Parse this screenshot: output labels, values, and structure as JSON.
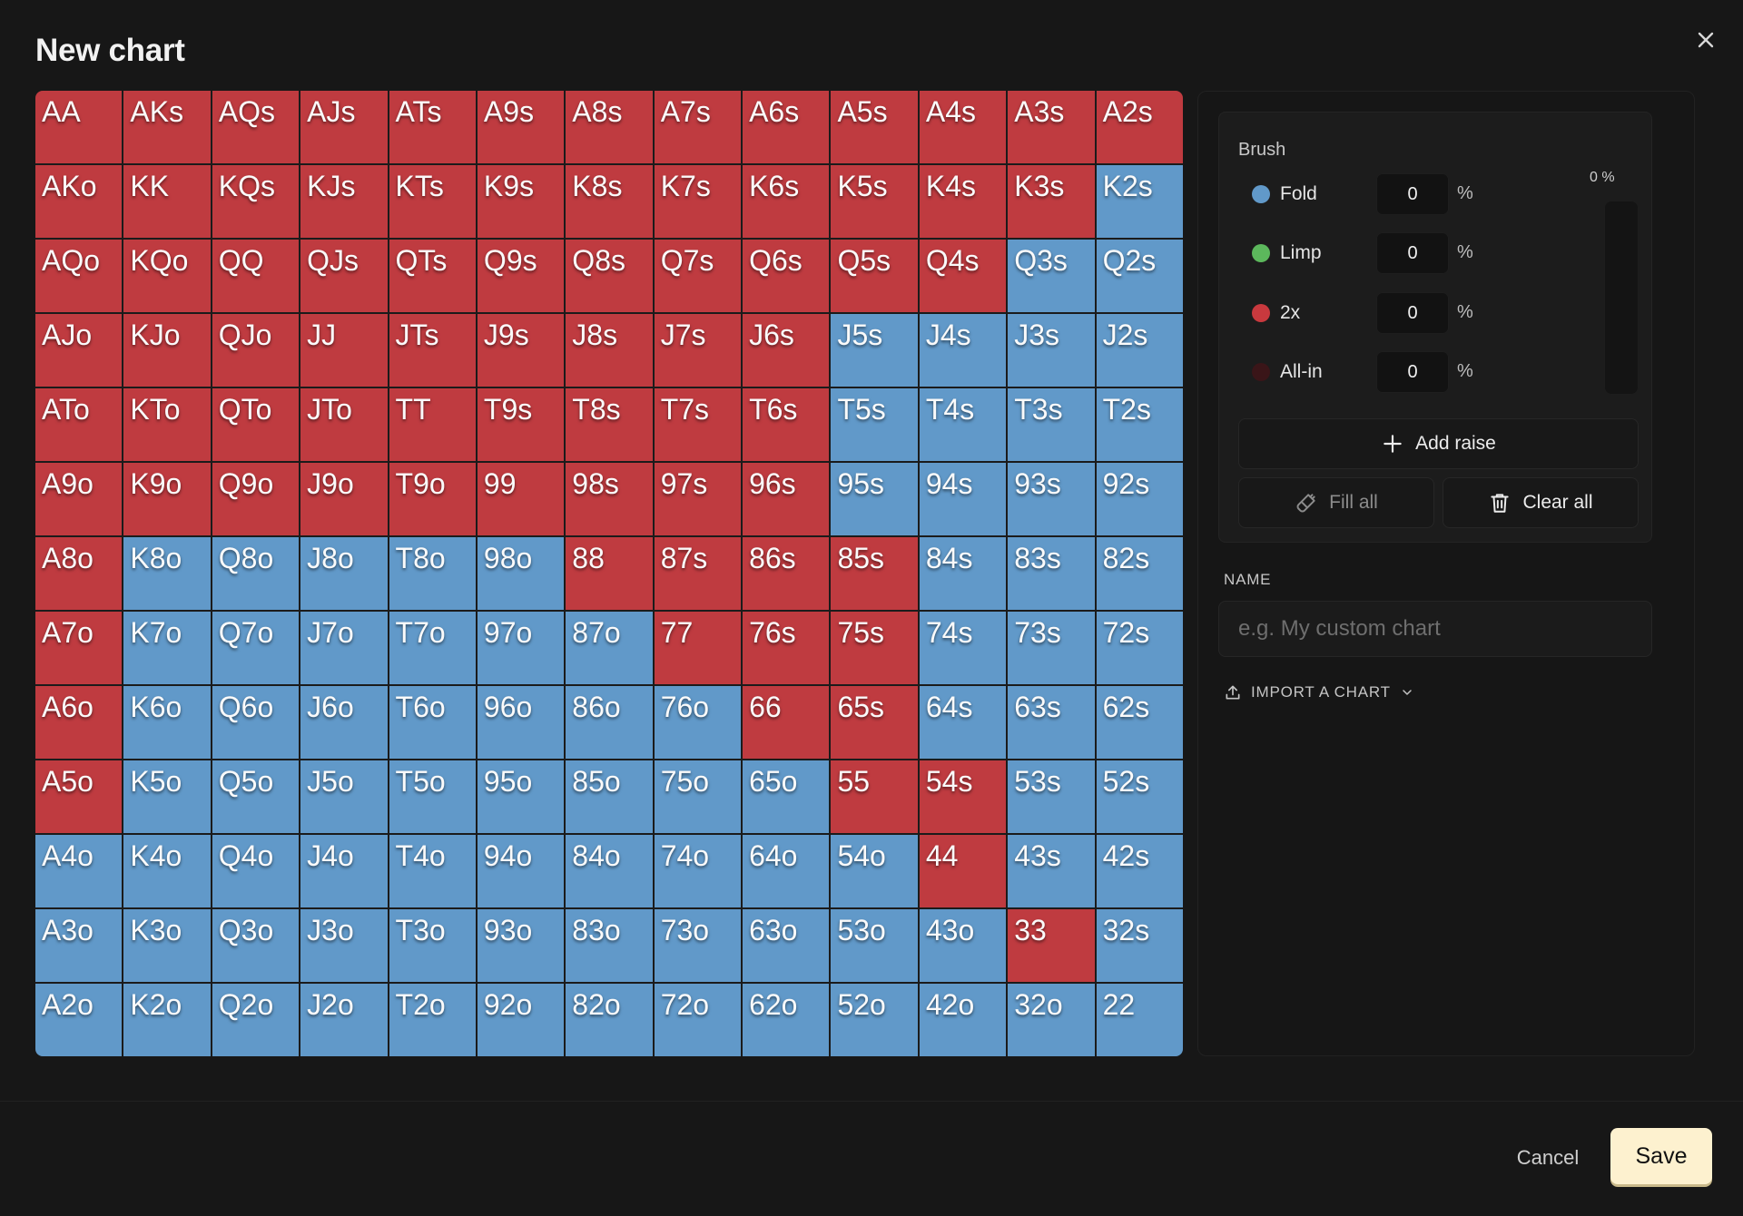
{
  "dialog": {
    "title": "New chart",
    "close_icon": "close-icon"
  },
  "grid": {
    "colors": {
      "2x": "#bf3b40",
      "Fold": "#6199c9"
    },
    "rows": [
      [
        "AA",
        "AKs",
        "AQs",
        "AJs",
        "ATs",
        "A9s",
        "A8s",
        "A7s",
        "A6s",
        "A5s",
        "A4s",
        "A3s",
        "A2s"
      ],
      [
        "AKo",
        "KK",
        "KQs",
        "KJs",
        "KTs",
        "K9s",
        "K8s",
        "K7s",
        "K6s",
        "K5s",
        "K4s",
        "K3s",
        "K2s"
      ],
      [
        "AQo",
        "KQo",
        "QQ",
        "QJs",
        "QTs",
        "Q9s",
        "Q8s",
        "Q7s",
        "Q6s",
        "Q5s",
        "Q4s",
        "Q3s",
        "Q2s"
      ],
      [
        "AJo",
        "KJo",
        "QJo",
        "JJ",
        "JTs",
        "J9s",
        "J8s",
        "J7s",
        "J6s",
        "J5s",
        "J4s",
        "J3s",
        "J2s"
      ],
      [
        "ATo",
        "KTo",
        "QTo",
        "JTo",
        "TT",
        "T9s",
        "T8s",
        "T7s",
        "T6s",
        "T5s",
        "T4s",
        "T3s",
        "T2s"
      ],
      [
        "A9o",
        "K9o",
        "Q9o",
        "J9o",
        "T9o",
        "99",
        "98s",
        "97s",
        "96s",
        "95s",
        "94s",
        "93s",
        "92s"
      ],
      [
        "A8o",
        "K8o",
        "Q8o",
        "J8o",
        "T8o",
        "98o",
        "88",
        "87s",
        "86s",
        "85s",
        "84s",
        "83s",
        "82s"
      ],
      [
        "A7o",
        "K7o",
        "Q7o",
        "J7o",
        "T7o",
        "97o",
        "87o",
        "77",
        "76s",
        "75s",
        "74s",
        "73s",
        "72s"
      ],
      [
        "A6o",
        "K6o",
        "Q6o",
        "J6o",
        "T6o",
        "96o",
        "86o",
        "76o",
        "66",
        "65s",
        "64s",
        "63s",
        "62s"
      ],
      [
        "A5o",
        "K5o",
        "Q5o",
        "J5o",
        "T5o",
        "95o",
        "85o",
        "75o",
        "65o",
        "55",
        "54s",
        "53s",
        "52s"
      ],
      [
        "A4o",
        "K4o",
        "Q4o",
        "J4o",
        "T4o",
        "94o",
        "84o",
        "74o",
        "64o",
        "54o",
        "44",
        "43s",
        "42s"
      ],
      [
        "A3o",
        "K3o",
        "Q3o",
        "J3o",
        "T3o",
        "93o",
        "83o",
        "73o",
        "63o",
        "53o",
        "43o",
        "33",
        "32s"
      ],
      [
        "A2o",
        "K2o",
        "Q2o",
        "J2o",
        "T2o",
        "92o",
        "82o",
        "72o",
        "62o",
        "52o",
        "42o",
        "32o",
        "22"
      ]
    ],
    "actions": [
      [
        "2x",
        "2x",
        "2x",
        "2x",
        "2x",
        "2x",
        "2x",
        "2x",
        "2x",
        "2x",
        "2x",
        "2x",
        "2x"
      ],
      [
        "2x",
        "2x",
        "2x",
        "2x",
        "2x",
        "2x",
        "2x",
        "2x",
        "2x",
        "2x",
        "2x",
        "2x",
        "Fold"
      ],
      [
        "2x",
        "2x",
        "2x",
        "2x",
        "2x",
        "2x",
        "2x",
        "2x",
        "2x",
        "2x",
        "2x",
        "Fold",
        "Fold"
      ],
      [
        "2x",
        "2x",
        "2x",
        "2x",
        "2x",
        "2x",
        "2x",
        "2x",
        "2x",
        "Fold",
        "Fold",
        "Fold",
        "Fold"
      ],
      [
        "2x",
        "2x",
        "2x",
        "2x",
        "2x",
        "2x",
        "2x",
        "2x",
        "2x",
        "Fold",
        "Fold",
        "Fold",
        "Fold"
      ],
      [
        "2x",
        "2x",
        "2x",
        "2x",
        "2x",
        "2x",
        "2x",
        "2x",
        "2x",
        "Fold",
        "Fold",
        "Fold",
        "Fold"
      ],
      [
        "2x",
        "Fold",
        "Fold",
        "Fold",
        "Fold",
        "Fold",
        "2x",
        "2x",
        "2x",
        "2x",
        "Fold",
        "Fold",
        "Fold"
      ],
      [
        "2x",
        "Fold",
        "Fold",
        "Fold",
        "Fold",
        "Fold",
        "Fold",
        "2x",
        "2x",
        "2x",
        "Fold",
        "Fold",
        "Fold"
      ],
      [
        "2x",
        "Fold",
        "Fold",
        "Fold",
        "Fold",
        "Fold",
        "Fold",
        "Fold",
        "2x",
        "2x",
        "Fold",
        "Fold",
        "Fold"
      ],
      [
        "2x",
        "Fold",
        "Fold",
        "Fold",
        "Fold",
        "Fold",
        "Fold",
        "Fold",
        "Fold",
        "2x",
        "2x",
        "Fold",
        "Fold"
      ],
      [
        "Fold",
        "Fold",
        "Fold",
        "Fold",
        "Fold",
        "Fold",
        "Fold",
        "Fold",
        "Fold",
        "Fold",
        "2x",
        "Fold",
        "Fold"
      ],
      [
        "Fold",
        "Fold",
        "Fold",
        "Fold",
        "Fold",
        "Fold",
        "Fold",
        "Fold",
        "Fold",
        "Fold",
        "Fold",
        "2x",
        "Fold"
      ],
      [
        "Fold",
        "Fold",
        "Fold",
        "Fold",
        "Fold",
        "Fold",
        "Fold",
        "Fold",
        "Fold",
        "Fold",
        "Fold",
        "Fold",
        "Fold"
      ]
    ]
  },
  "brush": {
    "title": "Brush",
    "meter_label": "0 %",
    "actions": [
      {
        "label": "Fold",
        "value": "0",
        "unit": "%",
        "color": "#6199c9"
      },
      {
        "label": "Limp",
        "value": "0",
        "unit": "%",
        "color": "#5cb85c"
      },
      {
        "label": "2x",
        "value": "0",
        "unit": "%",
        "color": "#c9393e"
      },
      {
        "label": "All-in",
        "value": "0",
        "unit": "%",
        "color": "#3a1518"
      }
    ],
    "add_raise": "Add raise",
    "fill_all": "Fill all",
    "clear_all": "Clear all"
  },
  "name_field": {
    "label": "NAME",
    "value": "",
    "placeholder": "e.g. My custom chart"
  },
  "import": {
    "label": "IMPORT A CHART"
  },
  "footer": {
    "cancel": "Cancel",
    "save": "Save"
  }
}
